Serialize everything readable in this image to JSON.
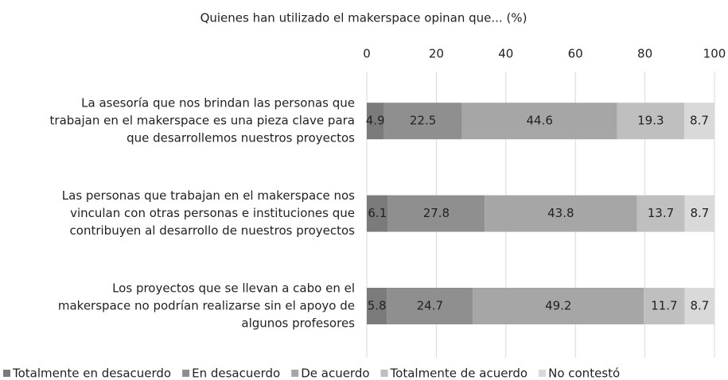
{
  "chart_data": {
    "type": "stacked_barh",
    "title": "Quienes han utilizado el makerspace opinan que... (%)",
    "categories": [
      [
        "La asesoría que nos brindan las personas que",
        "trabajan en el makerspace es una pieza clave para",
        "que desarrollemos nuestros proyectos"
      ],
      [
        "Las personas que trabajan en el makerspace nos",
        "vinculan con otras personas e instituciones que",
        "contribuyen al desarrollo de nuestros proyectos"
      ],
      [
        "Los proyectos que se llevan a cabo en el",
        "makerspace no podrían realizarse sin el apoyo de",
        "algunos profesores"
      ]
    ],
    "series": [
      {
        "name": "Totalmente en desacuerdo",
        "color": "#7b7b7b",
        "values": [
          4.9,
          6.1,
          5.8
        ]
      },
      {
        "name": "En desacuerdo",
        "color": "#8f8f8f",
        "values": [
          22.5,
          27.8,
          24.7
        ]
      },
      {
        "name": "De acuerdo",
        "color": "#a6a6a6",
        "values": [
          44.6,
          43.8,
          49.2
        ]
      },
      {
        "name": "Totalmente de acuerdo",
        "color": "#bfbfbf",
        "values": [
          19.3,
          13.7,
          11.7
        ]
      },
      {
        "name": "No contestó",
        "color": "#d9d9d9",
        "values": [
          8.7,
          8.7,
          8.7
        ]
      }
    ],
    "xlim": [
      0,
      100
    ],
    "xticks": [
      0,
      20,
      40,
      60,
      80,
      100
    ],
    "grid": true,
    "legend": "bottom"
  }
}
